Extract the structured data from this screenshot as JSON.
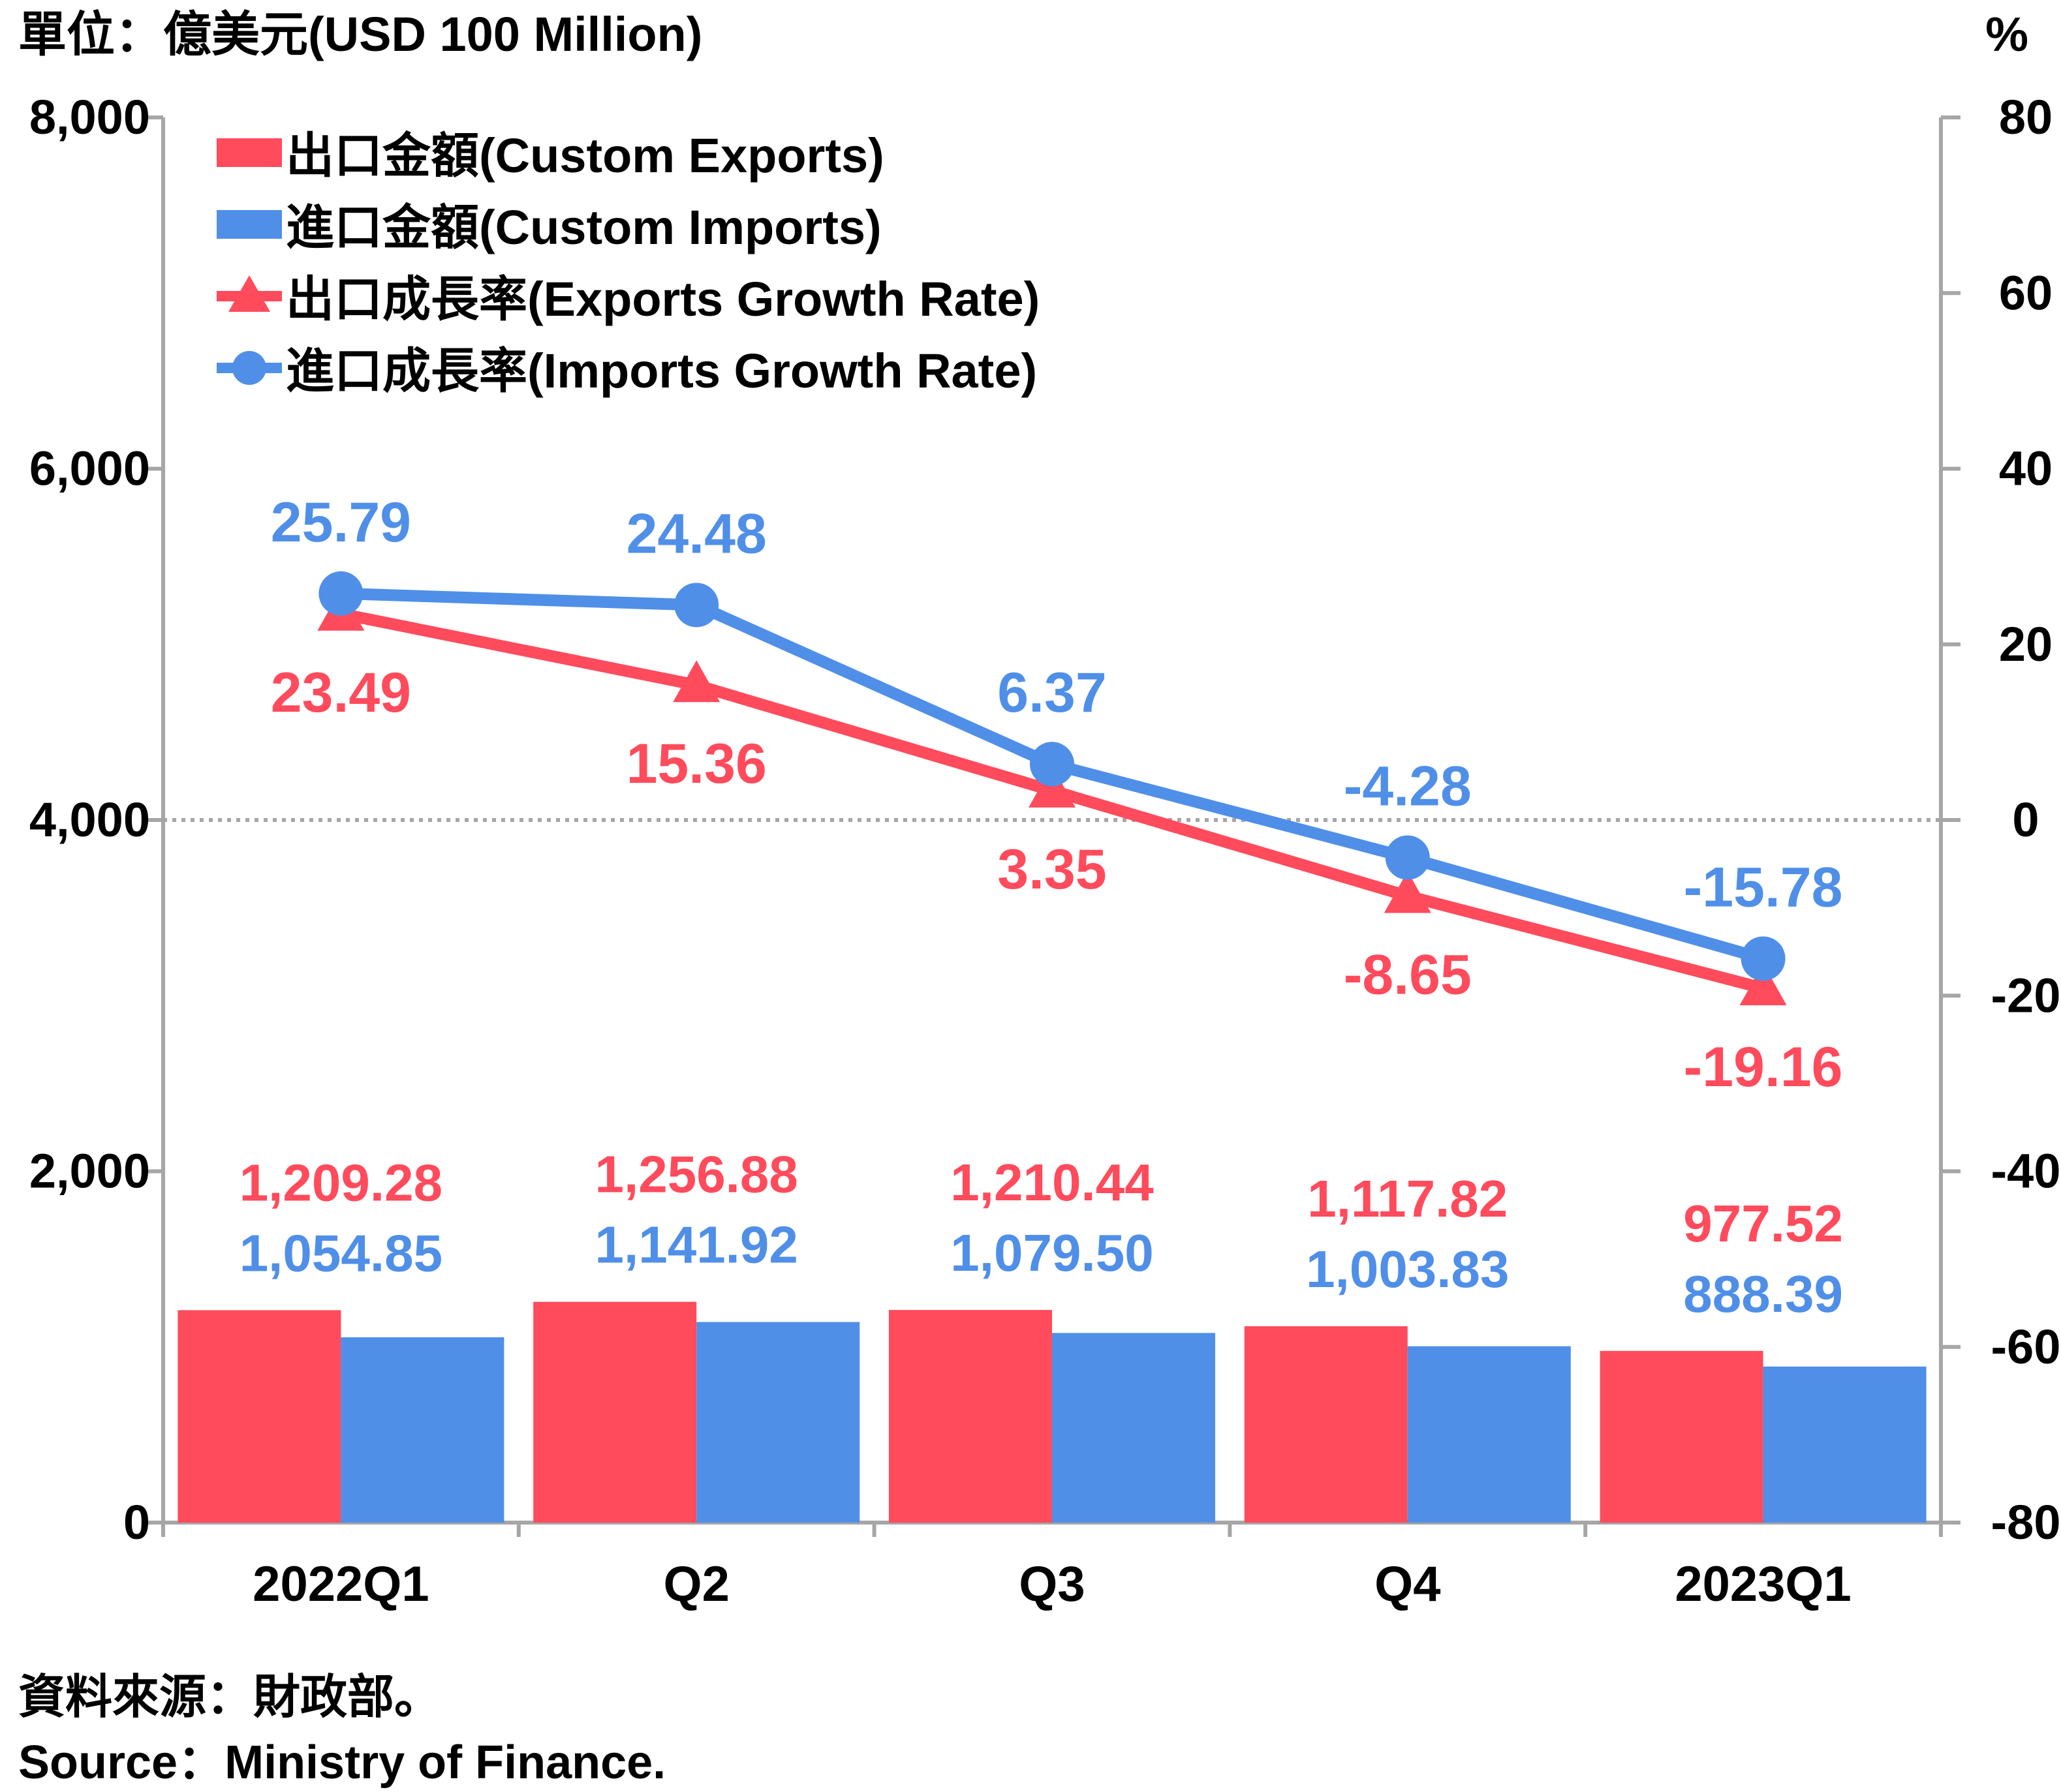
{
  "chart_data": {
    "type": "bar",
    "unit_label": "單位：億美元(USD 100 Million)",
    "right_unit_label": "%",
    "categories": [
      "2022Q1",
      "Q2",
      "Q3",
      "Q4",
      "2023Q1"
    ],
    "bar_series": [
      {
        "name": "出口金額(Custom Exports)",
        "color": "#ff4b5c",
        "values": [
          1209.28,
          1256.88,
          1210.44,
          1117.82,
          977.52
        ],
        "labels": [
          "1,209.28",
          "1,256.88",
          "1,210.44",
          "1,117.82",
          "977.52"
        ]
      },
      {
        "name": "進口金額(Custom Imports)",
        "color": "#4f8fe8",
        "values": [
          1054.85,
          1141.92,
          1079.5,
          1003.83,
          888.39
        ],
        "labels": [
          "1,054.85",
          "1,141.92",
          "1,079.50",
          "1,003.83",
          "888.39"
        ]
      }
    ],
    "line_series": [
      {
        "name": "出口成長率(Exports Growth Rate)",
        "color": "#ff4b5c",
        "marker": "triangle",
        "values": [
          23.49,
          15.36,
          3.35,
          -8.65,
          -19.16
        ],
        "labels": [
          "23.49",
          "15.36",
          "3.35",
          "-8.65",
          "-19.16"
        ]
      },
      {
        "name": "進口成長率(Imports Growth Rate)",
        "color": "#4f8fe8",
        "marker": "circle",
        "values": [
          25.79,
          24.48,
          6.37,
          -4.28,
          -15.78
        ],
        "labels": [
          "25.79",
          "24.48",
          "6.37",
          "-4.28",
          "-15.78"
        ]
      }
    ],
    "left_axis": {
      "min": 0,
      "max": 8000,
      "ticks": [
        0,
        2000,
        4000,
        6000,
        8000
      ],
      "tick_labels": [
        "0",
        "2,000",
        "4,000",
        "6,000",
        "8,000"
      ]
    },
    "right_axis": {
      "min": -80,
      "max": 80,
      "ticks": [
        -80,
        -60,
        -40,
        -20,
        0,
        20,
        40,
        60,
        80
      ],
      "tick_labels": [
        "-80",
        "-60",
        "-40",
        "-20",
        "0",
        "20",
        "40",
        "60",
        "80"
      ]
    },
    "reference_line": {
      "axis": "right",
      "value": 0,
      "style": "dotted"
    },
    "legend_position": "top-left",
    "grid": false
  },
  "footer": {
    "source_zh": "資料來源：財政部。",
    "source_en": "Source：Ministry of Finance."
  }
}
